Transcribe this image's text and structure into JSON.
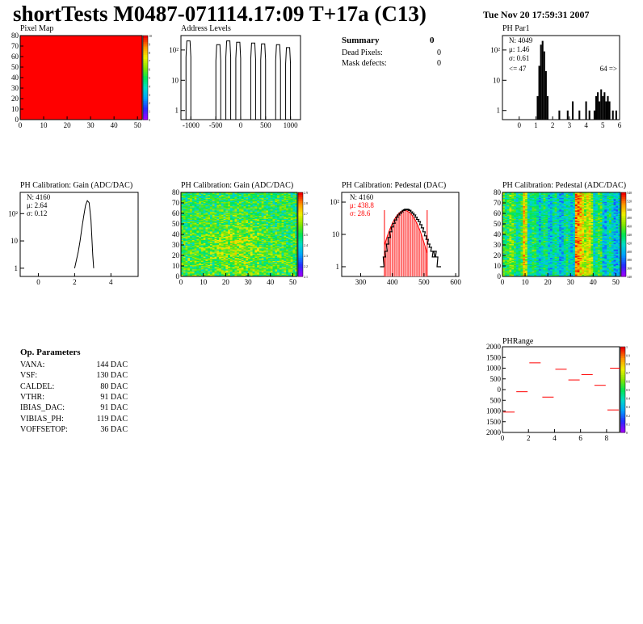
{
  "header": {
    "title": "shortTests M0487-071114.17:09 T+17a (C13)",
    "date": "Tue Nov 20 17:59:31 2007"
  },
  "summary": {
    "title": "Summary",
    "total": "0",
    "rows": [
      {
        "label": "Dead Pixels:",
        "value": "0"
      },
      {
        "label": "Mask defects:",
        "value": "0"
      }
    ]
  },
  "op_parameters": {
    "title": "Op. Parameters",
    "rows": [
      {
        "name": "VANA:",
        "value": "144 DAC"
      },
      {
        "name": "VSF:",
        "value": "130 DAC"
      },
      {
        "name": "CALDEL:",
        "value": "80 DAC"
      },
      {
        "name": "VTHR:",
        "value": "91 DAC"
      },
      {
        "name": "IBIAS_DAC:",
        "value": "91 DAC"
      },
      {
        "name": "VIBIAS_PH:",
        "value": "119 DAC"
      },
      {
        "name": "VOFFSETOP:",
        "value": "36 DAC"
      }
    ]
  },
  "colors": {
    "frame": "#000000",
    "fit": "#ff0000",
    "pixel_map": "#ff0000"
  },
  "chart_data": [
    {
      "id": "pixel-map",
      "type": "heatmap",
      "title": "Pixel Map",
      "xlim": [
        0,
        52
      ],
      "ylim": [
        0,
        80
      ],
      "xticks": [
        0,
        10,
        20,
        30,
        40,
        50
      ],
      "yticks": [
        0,
        10,
        20,
        30,
        40,
        50,
        60,
        70,
        80
      ],
      "uniform_value": 10,
      "zlim": [
        0,
        10
      ],
      "zticks": [
        "0",
        "1",
        "2",
        "3",
        "4",
        "5",
        "6",
        "7",
        "8",
        "9",
        "10"
      ]
    },
    {
      "id": "address-levels",
      "type": "line",
      "title": "Address Levels",
      "xlim": [
        -1200,
        1200
      ],
      "ylim_log": [
        0.5,
        300
      ],
      "xticks": [
        -1000,
        -500,
        0,
        500,
        1000
      ],
      "ytick_labels": [
        "1",
        "10",
        "10²"
      ],
      "peaks": [
        {
          "x": -1050,
          "height": 200
        },
        {
          "x": -450,
          "height": 150
        },
        {
          "x": -250,
          "height": 200
        },
        {
          "x": -50,
          "height": 180
        },
        {
          "x": 250,
          "height": 170
        },
        {
          "x": 450,
          "height": 160
        },
        {
          "x": 750,
          "height": 150
        },
        {
          "x": 950,
          "height": 120
        }
      ]
    },
    {
      "id": "ph-par1",
      "type": "bar",
      "title": "PH Par1",
      "xlim": [
        -1,
        6
      ],
      "ylim_log": [
        0.5,
        300
      ],
      "xticks": [
        0,
        1,
        2,
        3,
        4,
        5,
        6
      ],
      "ytick_labels": [
        "1",
        "10",
        "10²"
      ],
      "stats": [
        "N: 4049",
        "μ: 1.46",
        "σ: 0.61"
      ],
      "underflow_label": "<= 47",
      "overflow_label": "64 =>",
      "x": [
        1.1,
        1.2,
        1.3,
        1.4,
        1.5,
        1.6,
        1.7,
        2.4,
        2.9,
        3.2,
        3.6,
        4.0,
        4.2,
        4.5,
        4.6,
        4.7,
        4.8,
        4.9,
        5.0,
        5.1,
        5.2,
        5.3,
        5.4,
        5.6,
        5.8
      ],
      "values": [
        3,
        30,
        150,
        200,
        90,
        20,
        3,
        1,
        1,
        2,
        1,
        2,
        1,
        1,
        3,
        4,
        2,
        5,
        3,
        4,
        2,
        3,
        2,
        1,
        1
      ]
    },
    {
      "id": "gain-hist",
      "type": "line",
      "title": "PH Calibration: Gain (ADC/DAC)",
      "xlim": [
        -1,
        5.5
      ],
      "ylim_log": [
        0.5,
        600
      ],
      "xticks": [
        0,
        2,
        4
      ],
      "ytick_labels": [
        "1",
        "10",
        "10²"
      ],
      "stats": [
        "N: 4160",
        "μ: 2.64",
        "σ: 0.12"
      ],
      "x": [
        2.0,
        2.1,
        2.2,
        2.3,
        2.4,
        2.5,
        2.6,
        2.7,
        2.8,
        2.9,
        3.0,
        3.05
      ],
      "values": [
        1,
        2,
        4,
        10,
        30,
        80,
        200,
        300,
        250,
        60,
        3,
        1
      ]
    },
    {
      "id": "gain-map",
      "type": "heatmap",
      "title": "PH Calibration: Gain (ADC/DAC)",
      "xlim": [
        0,
        52
      ],
      "ylim": [
        0,
        80
      ],
      "xticks": [
        0,
        10,
        20,
        30,
        40,
        50
      ],
      "yticks": [
        0,
        10,
        20,
        30,
        40,
        50,
        60,
        70,
        80
      ],
      "zlim": [
        2.1,
        3.0
      ],
      "mean": 2.64,
      "zticks": [
        "2.1",
        "2.2",
        "2.3",
        "2.4",
        "2.5",
        "2.6",
        "2.7",
        "2.8",
        "2.9"
      ]
    },
    {
      "id": "pedestal-hist",
      "type": "bar",
      "title": "PH Calibration: Pedestal (DAC)",
      "xlim": [
        240,
        610
      ],
      "ylim_log": [
        0.5,
        200
      ],
      "xticks": [
        300,
        400,
        500,
        600
      ],
      "ytick_labels": [
        "1",
        "10",
        "10²"
      ],
      "stats": [
        "N: 4160"
      ],
      "fit_stats": [
        "μ: 438.8",
        "σ: 28.6"
      ],
      "fit": {
        "mean": 438.8,
        "sigma": 28.6,
        "peak": 55,
        "range": [
          375,
          510
        ]
      },
      "x": [
        365,
        370,
        375,
        380,
        385,
        390,
        395,
        400,
        405,
        410,
        415,
        420,
        425,
        430,
        435,
        440,
        445,
        450,
        455,
        460,
        465,
        470,
        475,
        480,
        485,
        490,
        495,
        500,
        505,
        510,
        515,
        520,
        525,
        530,
        535,
        540,
        545,
        550
      ],
      "values": [
        1,
        1,
        2,
        3,
        5,
        8,
        12,
        17,
        22,
        28,
        34,
        40,
        45,
        50,
        55,
        58,
        60,
        58,
        55,
        50,
        45,
        40,
        34,
        29,
        25,
        20,
        16,
        12,
        9,
        7,
        5,
        4,
        3,
        2,
        3,
        2,
        1,
        1
      ]
    },
    {
      "id": "pedestal-map",
      "type": "heatmap",
      "title": "PH Calibration: Pedestal (ADC/DAC)",
      "xlim": [
        0,
        52
      ],
      "ylim": [
        0,
        80
      ],
      "xticks": [
        0,
        10,
        20,
        30,
        40,
        50
      ],
      "yticks": [
        0,
        10,
        20,
        30,
        40,
        50,
        60,
        70,
        80
      ],
      "zlim": [
        340,
        560
      ],
      "zticks": [
        "340",
        "360",
        "380",
        "400",
        "420",
        "440",
        "460",
        "480",
        "500",
        "520",
        "540"
      ]
    },
    {
      "id": "ph-range",
      "type": "scatter",
      "title": "PHRange",
      "xlim": [
        0,
        9
      ],
      "ylim": [
        -2000,
        2000
      ],
      "xticks": [
        0,
        2,
        4,
        6,
        8
      ],
      "yticks": [
        -2000,
        -1500,
        -1000,
        -500,
        0,
        500,
        1000,
        1500,
        2000
      ],
      "ytick_labels": [
        "2000",
        "1500",
        "1000",
        "500",
        "0",
        "500",
        "1000",
        "1500",
        "2000"
      ],
      "zlim": [
        0,
        1
      ],
      "zticks": [
        "0",
        "0.1",
        "0.2",
        "0.3",
        "0.4",
        "0.5",
        "0.6",
        "0.7",
        "0.8",
        "0.9",
        "1"
      ],
      "points": [
        {
          "x": 0.5,
          "y": -1050
        },
        {
          "x": 1.5,
          "y": -100
        },
        {
          "x": 2.5,
          "y": 1250
        },
        {
          "x": 3.5,
          "y": -350
        },
        {
          "x": 4.5,
          "y": 950
        },
        {
          "x": 5.5,
          "y": 450
        },
        {
          "x": 6.5,
          "y": 700
        },
        {
          "x": 7.5,
          "y": 200
        },
        {
          "x": 8.5,
          "y": -950
        },
        {
          "x": 8.7,
          "y": 1000
        }
      ]
    }
  ]
}
